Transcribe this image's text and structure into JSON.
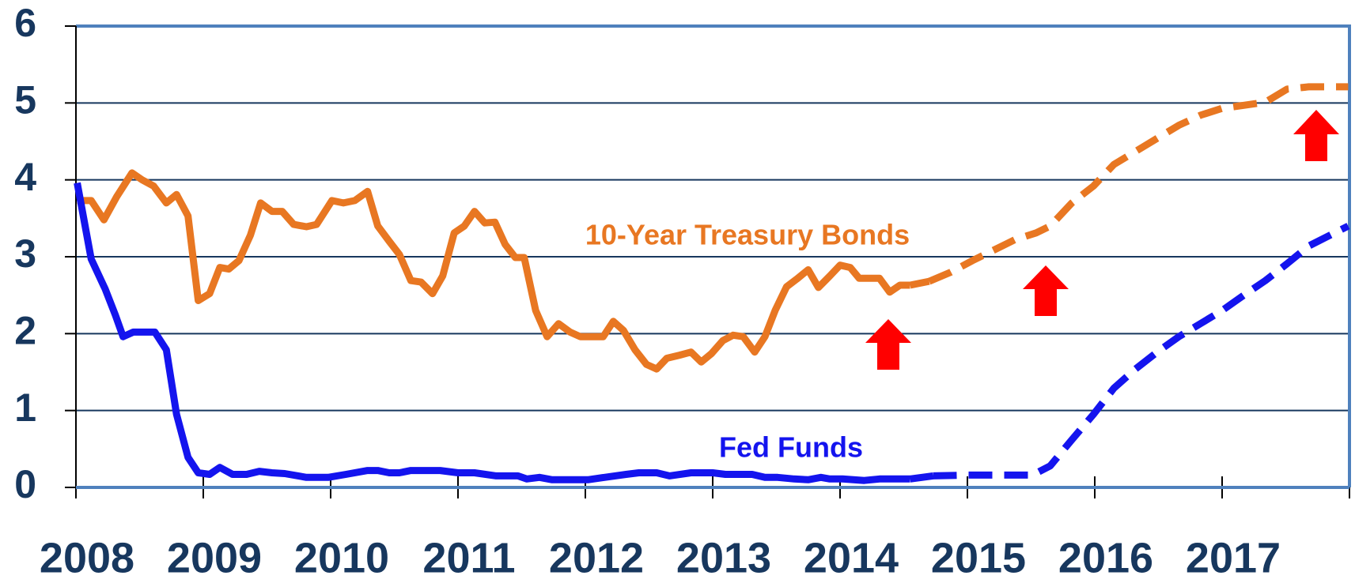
{
  "chart_data": {
    "type": "line",
    "xlim": [
      2008,
      2018
    ],
    "xticks": [
      2008,
      2009,
      2010,
      2011,
      2012,
      2013,
      2014,
      2015,
      2016,
      2017
    ],
    "ylim": [
      0,
      6
    ],
    "yticks": [
      0,
      1,
      2,
      3,
      4,
      5,
      6
    ],
    "grid": true,
    "series": [
      {
        "name": "10-Year Treasury Bonds",
        "color": "#e87722",
        "x": [
          2008.01,
          2008.12,
          2008.22,
          2008.32,
          2008.44,
          2008.52,
          2008.61,
          2008.71,
          2008.79,
          2008.88,
          2008.96,
          2009.05,
          2009.13,
          2009.2,
          2009.28,
          2009.37,
          2009.45,
          2009.54,
          2009.62,
          2009.71,
          2009.81,
          2009.89,
          2010.01,
          2010.1,
          2010.19,
          2010.29,
          2010.37,
          2010.46,
          2010.54,
          2010.63,
          2010.71,
          2010.8,
          2010.88,
          2010.97,
          2011.05,
          2011.13,
          2011.21,
          2011.29,
          2011.37,
          2011.45,
          2011.52,
          2011.61,
          2011.7,
          2011.79,
          2011.88,
          2011.96,
          2012.05,
          2012.14,
          2012.22,
          2012.3,
          2012.39,
          2012.48,
          2012.56,
          2012.64,
          2012.74,
          2012.83,
          2012.91,
          2012.99,
          2013.08,
          2013.16,
          2013.24,
          2013.33,
          2013.41,
          2013.49,
          2013.58,
          2013.66,
          2013.75,
          2013.83,
          2013.92,
          2014.0,
          2014.08,
          2014.15,
          2014.24,
          2014.31,
          2014.39,
          2014.47,
          2014.55
        ],
        "values": [
          3.73,
          3.73,
          3.48,
          3.78,
          4.09,
          4.0,
          3.92,
          3.7,
          3.81,
          3.53,
          2.43,
          2.52,
          2.86,
          2.84,
          2.95,
          3.28,
          3.7,
          3.59,
          3.59,
          3.42,
          3.39,
          3.42,
          3.73,
          3.7,
          3.73,
          3.85,
          3.4,
          3.2,
          3.03,
          2.69,
          2.67,
          2.52,
          2.75,
          3.31,
          3.4,
          3.59,
          3.44,
          3.45,
          3.16,
          2.99,
          2.99,
          2.3,
          1.96,
          2.13,
          2.02,
          1.96,
          1.96,
          1.96,
          2.16,
          2.04,
          1.79,
          1.6,
          1.54,
          1.68,
          1.72,
          1.76,
          1.63,
          1.74,
          1.91,
          1.98,
          1.96,
          1.76,
          1.96,
          2.3,
          2.61,
          2.71,
          2.83,
          2.6,
          2.75,
          2.89,
          2.86,
          2.72,
          2.72,
          2.72,
          2.54,
          2.63,
          2.63
        ],
        "projection_x": [
          2014.7,
          2014.87,
          2015.04,
          2015.2,
          2015.37,
          2015.54,
          2015.65,
          2015.82,
          2015.99,
          2016.15,
          2016.32,
          2016.49,
          2016.66,
          2016.83,
          2017.0,
          2017.17,
          2017.34,
          2017.51,
          2017.68,
          2017.99
        ],
        "projection_values": [
          2.68,
          2.8,
          2.95,
          3.08,
          3.22,
          3.31,
          3.4,
          3.7,
          3.92,
          4.2,
          4.37,
          4.54,
          4.71,
          4.84,
          4.93,
          4.97,
          5.01,
          5.18,
          5.21,
          5.21
        ]
      },
      {
        "name": "Fed Funds",
        "color": "#1414ee",
        "x": [
          2008.01,
          2008.12,
          2008.23,
          2008.31,
          2008.37,
          2008.45,
          2008.62,
          2008.71,
          2008.79,
          2008.88,
          2008.96,
          2009.05,
          2009.13,
          2009.23,
          2009.34,
          2009.44,
          2009.54,
          2009.64,
          2009.81,
          2009.98,
          2010.12,
          2010.29,
          2010.37,
          2010.46,
          2010.54,
          2010.63,
          2010.86,
          2011.0,
          2011.13,
          2011.3,
          2011.47,
          2011.54,
          2011.64,
          2011.74,
          2012.02,
          2012.15,
          2012.32,
          2012.42,
          2012.56,
          2012.66,
          2012.83,
          2013.0,
          2013.1,
          2013.31,
          2013.41,
          2013.51,
          2013.64,
          2013.75,
          2013.85,
          2013.92,
          2014.02,
          2014.19,
          2014.31,
          2014.55
        ],
        "values": [
          3.96,
          2.97,
          2.58,
          2.24,
          1.96,
          2.02,
          2.02,
          1.79,
          0.95,
          0.39,
          0.19,
          0.17,
          0.26,
          0.17,
          0.17,
          0.21,
          0.19,
          0.18,
          0.13,
          0.13,
          0.17,
          0.22,
          0.22,
          0.19,
          0.19,
          0.22,
          0.22,
          0.19,
          0.19,
          0.15,
          0.15,
          0.11,
          0.13,
          0.1,
          0.1,
          0.13,
          0.17,
          0.19,
          0.19,
          0.15,
          0.19,
          0.19,
          0.17,
          0.17,
          0.13,
          0.13,
          0.11,
          0.1,
          0.13,
          0.11,
          0.11,
          0.09,
          0.11,
          0.11
        ],
        "projection_x": [
          2014.73,
          2015.0,
          2015.27,
          2015.51,
          2015.65,
          2015.82,
          2015.99,
          2016.15,
          2016.32,
          2016.49,
          2016.66,
          2016.83,
          2017.0,
          2017.17,
          2017.34,
          2017.51,
          2017.68,
          2017.99
        ],
        "projection_values": [
          0.15,
          0.16,
          0.16,
          0.16,
          0.28,
          0.62,
          0.95,
          1.29,
          1.54,
          1.76,
          1.96,
          2.13,
          2.3,
          2.5,
          2.69,
          2.91,
          3.14,
          3.4
        ]
      }
    ]
  }
}
